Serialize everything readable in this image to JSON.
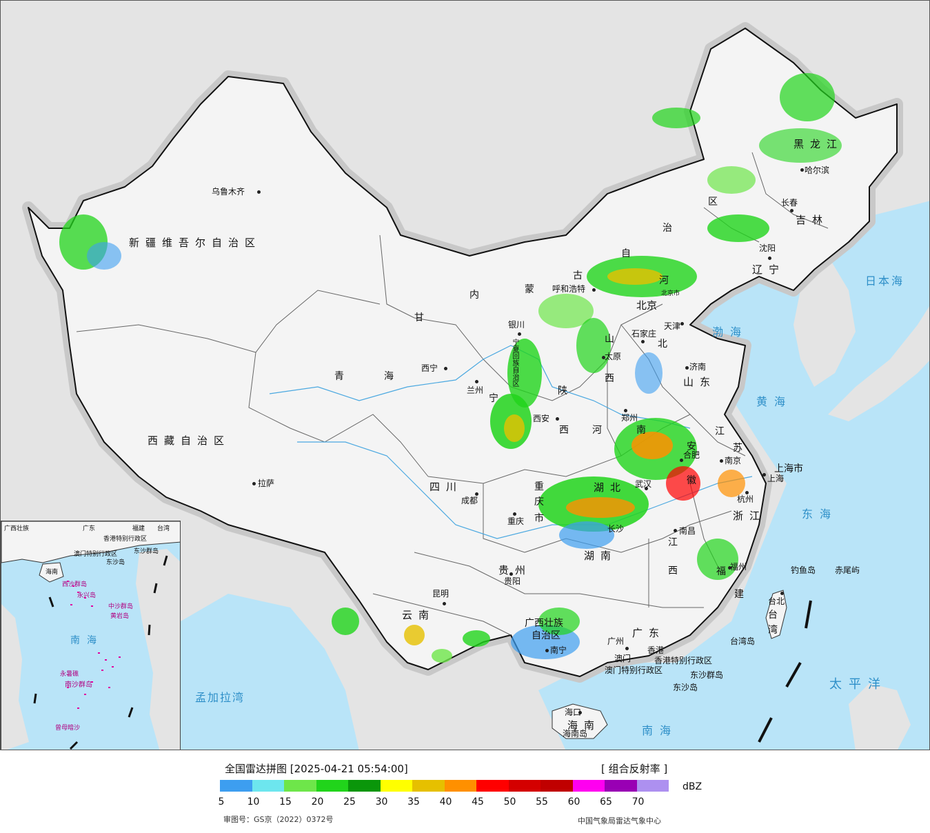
{
  "legend": {
    "title": "全国雷达拼图 [2025-04-21 05:54:00]",
    "product": "[ 组合反射率 ]",
    "unit": "dBZ",
    "colors": [
      "#3d9ef0",
      "#6de6ee",
      "#6ee64a",
      "#21d41b",
      "#0a960a",
      "#ffff00",
      "#e6c000",
      "#ff9000",
      "#ff0000",
      "#d40000",
      "#c00000",
      "#ff00f0",
      "#9900b4",
      "#ad90f0"
    ],
    "ticks": [
      "5",
      "10",
      "15",
      "20",
      "25",
      "30",
      "35",
      "40",
      "45",
      "50",
      "55",
      "60",
      "65",
      "70"
    ]
  },
  "footer": {
    "review_number": "审图号：GS京（2022）0372号",
    "agency": "中国气象局雷达气象中心"
  },
  "map": {
    "regions": [
      {
        "id": "xinjiang",
        "text": "新疆维吾尔自治区"
      },
      {
        "id": "xizang",
        "text": "西藏自治区"
      },
      {
        "id": "qinghai1",
        "text": "青"
      },
      {
        "id": "qinghai2",
        "text": "海"
      },
      {
        "id": "gansu",
        "text": "甘"
      },
      {
        "id": "nmg1",
        "text": "内"
      },
      {
        "id": "nmg2",
        "text": "蒙"
      },
      {
        "id": "nmg3",
        "text": "古"
      },
      {
        "id": "nmg4",
        "text": "自"
      },
      {
        "id": "nmg5",
        "text": "治"
      },
      {
        "id": "nmg6",
        "text": "区"
      },
      {
        "id": "heilongjiang",
        "text": "黑龙江"
      },
      {
        "id": "jilin",
        "text": "吉林"
      },
      {
        "id": "liaoning",
        "text": "辽宁"
      },
      {
        "id": "hebei1",
        "text": "河"
      },
      {
        "id": "hebei2",
        "text": "北"
      },
      {
        "id": "shanxi1",
        "text": "山"
      },
      {
        "id": "shanxi2",
        "text": "西"
      },
      {
        "id": "shandong",
        "text": "山东"
      },
      {
        "id": "shaanxi1",
        "text": "陕"
      },
      {
        "id": "shaanxi2",
        "text": "西"
      },
      {
        "id": "henan1",
        "text": "河"
      },
      {
        "id": "henan2",
        "text": "南"
      },
      {
        "id": "jiangsu1",
        "text": "江"
      },
      {
        "id": "jiangsu2",
        "text": "苏"
      },
      {
        "id": "anhui1",
        "text": "安"
      },
      {
        "id": "anhui2",
        "text": "徽"
      },
      {
        "id": "shanghai",
        "text": "上海市"
      },
      {
        "id": "sichuan",
        "text": "四川"
      },
      {
        "id": "chongqing1",
        "text": "重"
      },
      {
        "id": "chongqing2",
        "text": "庆"
      },
      {
        "id": "chongqing3",
        "text": "市"
      },
      {
        "id": "hubei",
        "text": "湖北"
      },
      {
        "id": "zhejiang",
        "text": "浙江"
      },
      {
        "id": "hunan",
        "text": "湖南"
      },
      {
        "id": "jiangxi1",
        "text": "江"
      },
      {
        "id": "jiangxi2",
        "text": "西"
      },
      {
        "id": "guizhou",
        "text": "贵州"
      },
      {
        "id": "fujian1",
        "text": "福"
      },
      {
        "id": "fujian2",
        "text": "建"
      },
      {
        "id": "yunnan",
        "text": "云南"
      },
      {
        "id": "guangxi1",
        "text": "广西壮族"
      },
      {
        "id": "guangxi2",
        "text": "自治区"
      },
      {
        "id": "guangdong",
        "text": "广东"
      },
      {
        "id": "taiwan1",
        "text": "台"
      },
      {
        "id": "taiwan2",
        "text": "湾"
      },
      {
        "id": "hainan",
        "text": "海南"
      },
      {
        "id": "ningxia",
        "text": "宁夏回族自治区"
      },
      {
        "id": "ningxia_cut",
        "text": "宁"
      },
      {
        "id": "hk",
        "text": "香港特别行政区"
      },
      {
        "id": "macau",
        "text": "澳门特别行政区"
      }
    ],
    "cities": [
      {
        "id": "urumqi",
        "text": "乌鲁木齐"
      },
      {
        "id": "lhasa",
        "text": "拉萨"
      },
      {
        "id": "xining",
        "text": "西宁"
      },
      {
        "id": "lanzhou",
        "text": "兰州"
      },
      {
        "id": "yinchuan",
        "text": "银川"
      },
      {
        "id": "hohhot",
        "text": "呼和浩特"
      },
      {
        "id": "beijing",
        "text": "北京"
      },
      {
        "id": "beijing_city",
        "text": "北京市"
      },
      {
        "id": "tianjin",
        "text": "天津"
      },
      {
        "id": "shijiazhuang",
        "text": "石家庄"
      },
      {
        "id": "taiyuan",
        "text": "太原"
      },
      {
        "id": "jinan",
        "text": "济南"
      },
      {
        "id": "xian",
        "text": "西安"
      },
      {
        "id": "zhengzhou",
        "text": "郑州"
      },
      {
        "id": "hefei",
        "text": "合肥"
      },
      {
        "id": "nanjing",
        "text": "南京"
      },
      {
        "id": "shanghai_c",
        "text": "上海"
      },
      {
        "id": "hangzhou",
        "text": "杭州"
      },
      {
        "id": "wuhan",
        "text": "武汉"
      },
      {
        "id": "chengdu",
        "text": "成都"
      },
      {
        "id": "chongqing_c",
        "text": "重庆"
      },
      {
        "id": "nanchang",
        "text": "南昌"
      },
      {
        "id": "changsha",
        "text": "长沙"
      },
      {
        "id": "guiyang",
        "text": "贵阳"
      },
      {
        "id": "kunming",
        "text": "昆明"
      },
      {
        "id": "fuzhou",
        "text": "福州"
      },
      {
        "id": "nanning",
        "text": "南宁"
      },
      {
        "id": "guangzhou",
        "text": "广州"
      },
      {
        "id": "hongkong",
        "text": "香港"
      },
      {
        "id": "macau_c",
        "text": "澳门"
      },
      {
        "id": "haikou",
        "text": "海口"
      },
      {
        "id": "taipei",
        "text": "台北"
      },
      {
        "id": "shenyang",
        "text": "沈阳"
      },
      {
        "id": "changchun",
        "text": "长春"
      },
      {
        "id": "harbin",
        "text": "哈尔滨"
      }
    ],
    "seas": [
      {
        "id": "bohai",
        "text": "渤海"
      },
      {
        "id": "huanghai",
        "text": "黄海"
      },
      {
        "id": "donghai",
        "text": "东海"
      },
      {
        "id": "nanhai",
        "text": "南海"
      },
      {
        "id": "riben",
        "text": "日本海"
      },
      {
        "id": "taipingyang",
        "text": "太平洋"
      },
      {
        "id": "mengjiala",
        "text": "孟加拉湾"
      }
    ],
    "islands": [
      {
        "id": "diaoyu",
        "text": "钓鱼岛"
      },
      {
        "id": "chiwei",
        "text": "赤尾屿"
      },
      {
        "id": "dongsha",
        "text": "东沙群岛"
      },
      {
        "id": "dongsha2",
        "text": "东沙岛"
      },
      {
        "id": "taiwan_i",
        "text": "台湾岛"
      },
      {
        "id": "hainan_i",
        "text": "海南岛"
      }
    ],
    "inset": [
      {
        "id": "i1",
        "text": "广西壮族"
      },
      {
        "id": "i2",
        "text": "广东"
      },
      {
        "id": "i3",
        "text": "福建"
      },
      {
        "id": "i4",
        "text": "台湾"
      },
      {
        "id": "i5",
        "text": "香港特别行政区"
      },
      {
        "id": "i6",
        "text": "澳门特别行政区"
      },
      {
        "id": "i7",
        "text": "东沙群岛"
      },
      {
        "id": "i8",
        "text": "东沙岛"
      },
      {
        "id": "i9",
        "text": "海南"
      },
      {
        "id": "i10",
        "text": "西沙群岛"
      },
      {
        "id": "i11",
        "text": "永兴岛"
      },
      {
        "id": "i12",
        "text": "中沙群岛"
      },
      {
        "id": "i13",
        "text": "黄岩岛"
      },
      {
        "id": "i14",
        "text": "南海"
      },
      {
        "id": "i15",
        "text": "永暑礁"
      },
      {
        "id": "i16",
        "text": "南沙群岛"
      },
      {
        "id": "i17",
        "text": "曾母暗沙"
      }
    ]
  }
}
